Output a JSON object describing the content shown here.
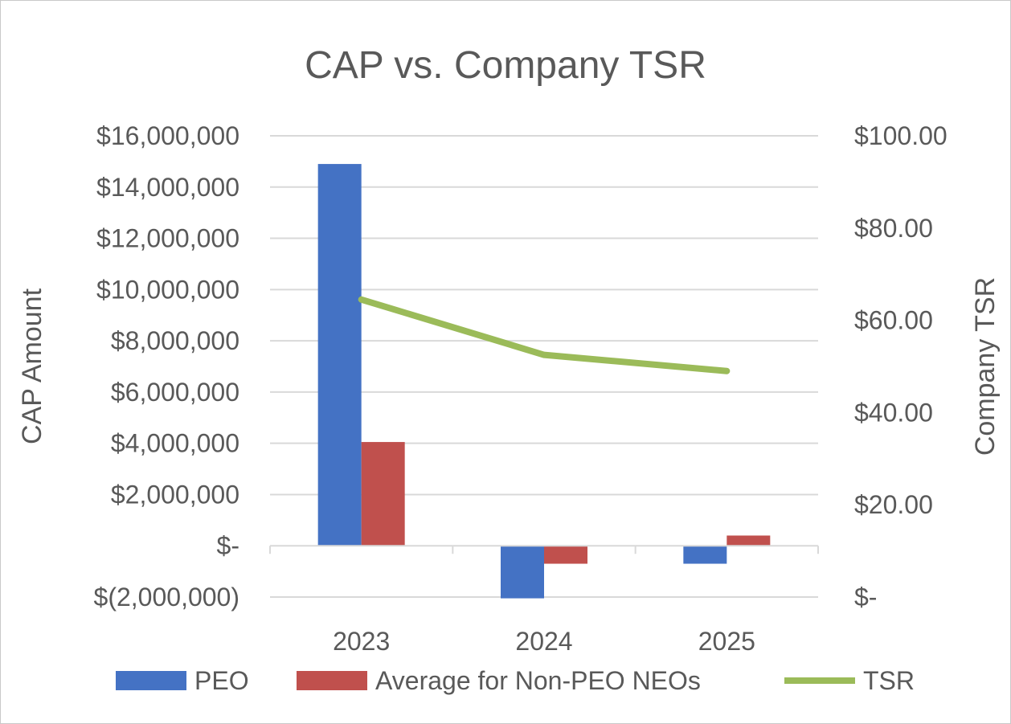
{
  "chart_data": {
    "type": "bar",
    "title": "CAP vs. Company TSR",
    "ylabel": "CAP Amount",
    "y2label": "Company TSR",
    "categories": [
      "2023",
      "2024",
      "2025"
    ],
    "ylim": [
      -2000000,
      16000000
    ],
    "y_ticks": [
      -2000000,
      0,
      2000000,
      4000000,
      6000000,
      8000000,
      10000000,
      12000000,
      14000000,
      16000000
    ],
    "y_tick_labels": [
      "$(2,000,000)",
      "$-",
      "$2,000,000",
      "$4,000,000",
      "$6,000,000",
      "$8,000,000",
      "$10,000,000",
      "$12,000,000",
      "$14,000,000",
      "$16,000,000"
    ],
    "y2lim": [
      0,
      100
    ],
    "y2_ticks": [
      0,
      20,
      40,
      60,
      80,
      100
    ],
    "y2_tick_labels": [
      "$-",
      "$20.00",
      "$40.00",
      "$60.00",
      "$80.00",
      "$100.00"
    ],
    "grid": true,
    "legend_position": "bottom",
    "series": [
      {
        "name": "PEO",
        "type": "bar",
        "axis": "left",
        "color": "#4472c4",
        "values": [
          14900000,
          -2050000,
          -700000
        ]
      },
      {
        "name": "Average for Non-PEO NEOs",
        "type": "bar",
        "axis": "left",
        "color": "#c0504d",
        "values": [
          4050000,
          -700000,
          400000
        ]
      },
      {
        "name": "TSR",
        "type": "line",
        "axis": "right",
        "color": "#9bbb59",
        "values": [
          64.5,
          52.5,
          49
        ]
      }
    ]
  }
}
